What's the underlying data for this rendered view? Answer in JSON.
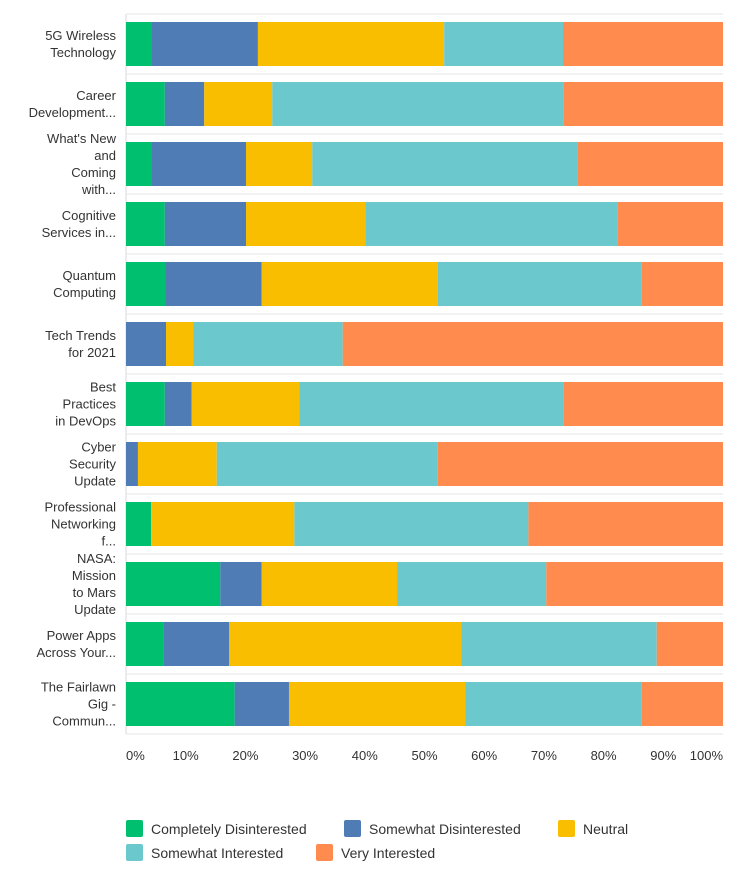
{
  "chart_data": {
    "type": "bar",
    "orientation": "horizontal",
    "stacked": "percent",
    "categories": [
      [
        "5G Wireless",
        "Technology"
      ],
      [
        "Career",
        "Development..."
      ],
      [
        "What's New",
        "and",
        "Coming",
        "with..."
      ],
      [
        "Cognitive",
        "Services in..."
      ],
      [
        "Quantum",
        "Computing"
      ],
      [
        "Tech Trends",
        "for 2021"
      ],
      [
        "Best",
        "Practices",
        "in DevOps"
      ],
      [
        "Cyber",
        "Security",
        "Update"
      ],
      [
        "Professional",
        "Networking",
        "f..."
      ],
      [
        "NASA:",
        "Mission",
        "to Mars",
        "Update"
      ],
      [
        "Power Apps",
        "Across Your..."
      ],
      [
        "The Fairlawn",
        "Gig -",
        "Commun..."
      ]
    ],
    "series": [
      {
        "name": "Completely Disinterested",
        "color": "#00bf6f",
        "values": [
          4.2,
          6.5,
          4.2,
          6.5,
          6.7,
          0.0,
          6.5,
          0.0,
          4.2,
          15.8,
          6.3,
          18.2
        ]
      },
      {
        "name": "Somewhat Disinterested",
        "color": "#507cb6",
        "values": [
          17.9,
          6.6,
          15.9,
          13.6,
          16.0,
          6.7,
          4.5,
          2.0,
          0.0,
          6.9,
          11.0,
          9.1
        ]
      },
      {
        "name": "Neutral",
        "color": "#f9be00",
        "values": [
          31.2,
          11.4,
          11.1,
          20.0,
          29.5,
          4.6,
          18.0,
          13.2,
          24.0,
          22.7,
          38.9,
          29.5
        ]
      },
      {
        "name": "Somewhat Interested",
        "color": "#6bc8cd",
        "values": [
          19.9,
          48.8,
          44.5,
          42.2,
          34.1,
          25.0,
          44.3,
          37.0,
          39.2,
          25.0,
          32.7,
          29.5
        ]
      },
      {
        "name": "Very Interested",
        "color": "#ff8b4f",
        "values": [
          26.8,
          26.7,
          24.3,
          17.7,
          13.7,
          63.7,
          26.7,
          47.8,
          32.6,
          29.6,
          11.1,
          13.7
        ]
      }
    ],
    "xticks": [
      "0%",
      "10%",
      "20%",
      "30%",
      "40%",
      "50%",
      "60%",
      "70%",
      "80%",
      "90%",
      "100%"
    ],
    "xlim": [
      0,
      100
    ],
    "grid": true,
    "legend_position": "bottom"
  }
}
